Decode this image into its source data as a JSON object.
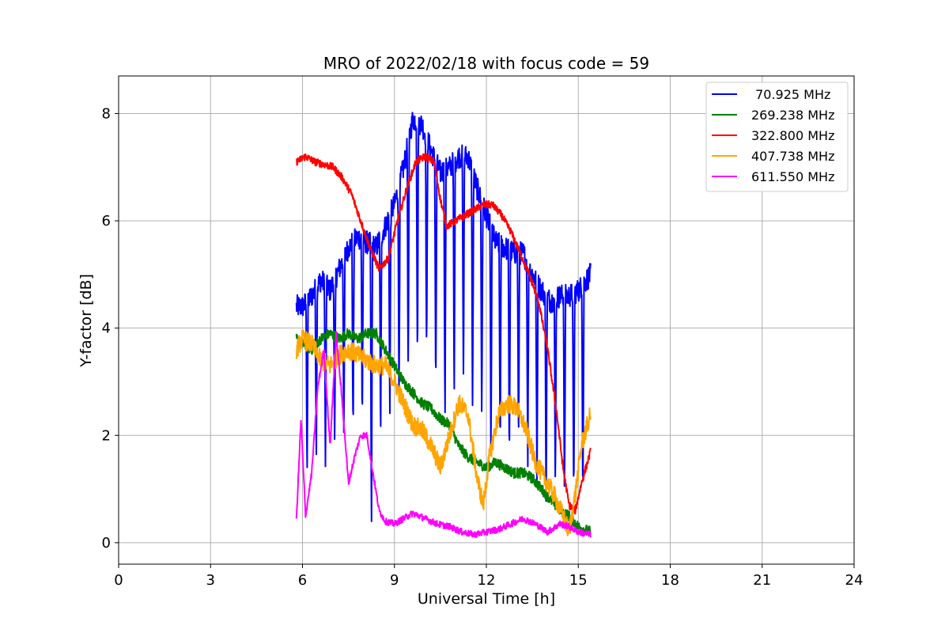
{
  "chart_data": {
    "type": "line",
    "title": "MRO of 2022/02/18 with focus code = 59",
    "xlabel": "Universal Time [h]",
    "ylabel": "Y-factor [dB]",
    "xlim": [
      0,
      24
    ],
    "ylim": [
      -0.4,
      8.7
    ],
    "xticks": [
      0,
      3,
      6,
      9,
      12,
      15,
      18,
      21,
      24
    ],
    "yticks": [
      0,
      2,
      4,
      6,
      8
    ],
    "grid": true,
    "legend_position": "top-right",
    "series": [
      {
        "name": " 70.925 MHz",
        "color": "#0000ff",
        "noise": 0.22,
        "x": [
          5.8,
          6.0,
          6.3,
          6.6,
          6.9,
          7.2,
          7.5,
          7.8,
          8.1,
          8.4,
          8.7,
          9.0,
          9.3,
          9.6,
          9.9,
          10.2,
          10.5,
          10.8,
          11.1,
          11.4,
          11.7,
          12.0,
          12.3,
          12.6,
          12.9,
          13.2,
          13.5,
          13.8,
          14.1,
          14.4,
          14.7,
          15.0,
          15.4
        ],
        "y": [
          4.4,
          4.4,
          4.6,
          4.9,
          4.7,
          5.1,
          5.5,
          5.7,
          5.6,
          5.5,
          5.9,
          6.3,
          7.0,
          7.9,
          7.8,
          7.3,
          6.9,
          7.0,
          7.2,
          7.2,
          6.6,
          6.1,
          5.6,
          5.5,
          5.4,
          5.4,
          5.0,
          4.7,
          4.5,
          4.6,
          4.6,
          4.7,
          5.0
        ],
        "dips": [
          6.15,
          6.45,
          6.75,
          7.05,
          7.35,
          7.65,
          7.95,
          8.25,
          8.55,
          8.85,
          9.15,
          9.45,
          9.75,
          10.05,
          10.35,
          10.65,
          10.95,
          11.25,
          11.55,
          11.85,
          12.15,
          12.45,
          12.75,
          13.05,
          13.35,
          13.65,
          13.95,
          14.25,
          14.55,
          14.85,
          15.15
        ],
        "dip_depths": [
          3.2,
          3.0,
          3.4,
          3.3,
          3.6,
          3.8,
          3.5,
          5.6,
          3.9,
          3.8,
          4.0,
          4.5,
          4.7,
          4.3,
          4.4,
          4.9,
          4.6,
          4.3,
          4.5,
          4.2,
          4.4,
          3.9,
          4.0,
          3.8,
          3.9,
          3.9,
          3.7,
          3.6,
          4.0,
          4.1,
          4.1
        ]
      },
      {
        "name": "269.238 MHz",
        "color": "#008000",
        "noise": 0.1,
        "x": [
          5.8,
          6.0,
          6.3,
          6.6,
          6.9,
          7.2,
          7.5,
          7.8,
          8.1,
          8.4,
          8.7,
          9.0,
          9.3,
          9.6,
          9.9,
          10.2,
          10.5,
          10.8,
          11.1,
          11.4,
          11.7,
          12.0,
          12.3,
          12.6,
          12.9,
          13.2,
          13.5,
          13.8,
          14.1,
          14.4,
          14.7,
          15.0,
          15.4
        ],
        "y": [
          3.8,
          3.7,
          3.6,
          3.8,
          3.9,
          3.8,
          3.9,
          3.8,
          3.9,
          3.9,
          3.6,
          3.3,
          3.0,
          2.8,
          2.6,
          2.5,
          2.3,
          2.2,
          1.8,
          1.6,
          1.5,
          1.4,
          1.5,
          1.4,
          1.3,
          1.3,
          1.2,
          1.0,
          0.8,
          0.6,
          0.5,
          0.3,
          0.2
        ],
        "dips": [],
        "dip_depths": []
      },
      {
        "name": "322.800 MHz",
        "color": "#ff0000",
        "noise": 0.07,
        "x": [
          5.8,
          6.1,
          6.4,
          6.7,
          7.0,
          7.3,
          7.6,
          7.9,
          8.2,
          8.5,
          8.8,
          9.1,
          9.4,
          9.7,
          10.0,
          10.3,
          10.5,
          10.7,
          11.0,
          11.3,
          11.6,
          11.9,
          12.2,
          12.5,
          12.8,
          13.1,
          13.4,
          13.7,
          14.0,
          14.3,
          14.5,
          14.7,
          14.9,
          15.1,
          15.4
        ],
        "y": [
          7.1,
          7.2,
          7.1,
          7.05,
          7.0,
          6.8,
          6.5,
          6.0,
          5.5,
          5.1,
          5.3,
          6.0,
          6.6,
          7.1,
          7.2,
          7.1,
          6.4,
          5.9,
          6.0,
          6.1,
          6.2,
          6.3,
          6.3,
          6.1,
          5.8,
          5.4,
          5.0,
          4.5,
          3.6,
          2.4,
          1.4,
          0.7,
          0.6,
          1.1,
          1.7
        ],
        "dips": [],
        "dip_depths": []
      },
      {
        "name": "407.738 MHz",
        "color": "#ffa500",
        "noise": 0.18,
        "x": [
          5.8,
          6.0,
          6.3,
          6.6,
          6.9,
          7.2,
          7.5,
          7.8,
          8.1,
          8.4,
          8.7,
          9.0,
          9.3,
          9.6,
          9.9,
          10.2,
          10.5,
          10.8,
          11.1,
          11.4,
          11.7,
          11.9,
          12.1,
          12.4,
          12.7,
          13.0,
          13.3,
          13.6,
          13.9,
          14.2,
          14.5,
          14.7,
          14.9,
          15.1,
          15.4
        ],
        "y": [
          3.6,
          3.8,
          3.7,
          3.4,
          3.3,
          3.5,
          3.6,
          3.5,
          3.4,
          3.3,
          3.3,
          3.0,
          2.6,
          2.2,
          2.1,
          1.8,
          1.4,
          2.0,
          2.6,
          2.4,
          1.2,
          0.7,
          1.6,
          2.4,
          2.6,
          2.5,
          2.1,
          1.5,
          1.2,
          0.9,
          0.5,
          0.2,
          0.9,
          1.8,
          2.4
        ],
        "dips": [],
        "dip_depths": []
      },
      {
        "name": "611.550 MHz",
        "color": "#ff00ff",
        "noise": 0.06,
        "x": [
          5.8,
          5.95,
          6.1,
          6.3,
          6.5,
          6.7,
          6.9,
          7.1,
          7.3,
          7.5,
          7.7,
          7.9,
          8.1,
          8.3,
          8.5,
          8.7,
          9.0,
          9.3,
          9.6,
          10.0,
          10.4,
          10.8,
          11.2,
          11.6,
          12.0,
          12.4,
          12.8,
          13.2,
          13.6,
          14.0,
          14.4,
          14.7,
          15.0,
          15.4
        ],
        "y": [
          0.4,
          2.3,
          0.5,
          1.3,
          2.9,
          3.6,
          1.8,
          3.9,
          2.6,
          1.1,
          1.6,
          2.0,
          2.0,
          1.3,
          0.6,
          0.4,
          0.35,
          0.45,
          0.55,
          0.45,
          0.35,
          0.3,
          0.2,
          0.15,
          0.2,
          0.25,
          0.35,
          0.45,
          0.35,
          0.2,
          0.35,
          0.3,
          0.2,
          0.15
        ],
        "dips": [],
        "dip_depths": []
      }
    ]
  }
}
